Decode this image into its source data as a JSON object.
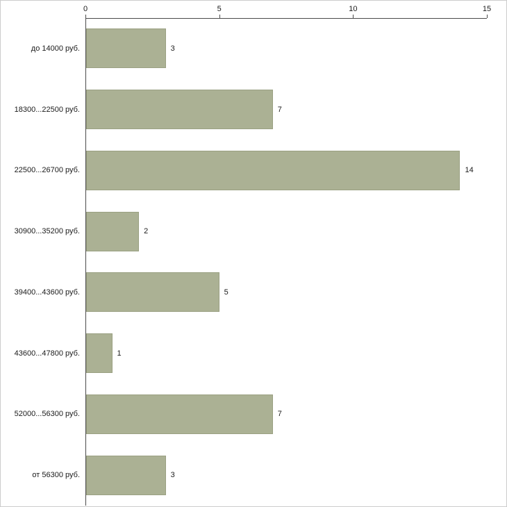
{
  "chart_data": {
    "type": "bar",
    "orientation": "horizontal",
    "title": "",
    "xlabel": "",
    "ylabel": "",
    "categories": [
      "до 14000 руб.",
      "18300...22500 руб.",
      "22500...26700 руб.",
      "30900...35200 руб.",
      "39400...43600 руб.",
      "43600...47800 руб.",
      "52000...56300 руб.",
      "от 56300 руб."
    ],
    "values": [
      3,
      7,
      14,
      2,
      5,
      1,
      7,
      3
    ],
    "xlim": [
      0,
      15
    ],
    "xticks": [
      0,
      5,
      10,
      15
    ],
    "grid": false,
    "legend": "none",
    "value_labels": true,
    "colors": {
      "bar_fill": "#abb194",
      "bar_border": "#9aa082",
      "axis": "#4a4a4a",
      "text": "#1a1a1a",
      "background": "#ffffff",
      "frame_border": "#cccccc"
    }
  }
}
